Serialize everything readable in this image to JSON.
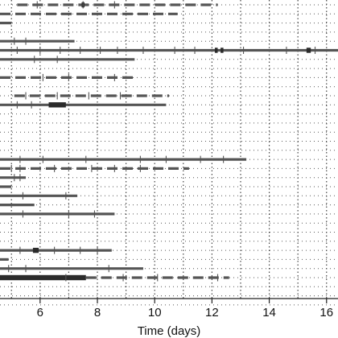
{
  "chart_data": {
    "type": "swimmer",
    "title": "",
    "xlabel": "Time (days)",
    "ylabel": "",
    "xlim": [
      4.6,
      16.4
    ],
    "x_ticks": [
      6,
      8,
      10,
      12,
      14,
      16
    ],
    "grid": {
      "vertical": "dotted",
      "horizontal": "dotted"
    },
    "colors": {
      "bar": "#555555",
      "dark": "#2b2b2b",
      "grid": "#444444",
      "axis": "#222222"
    },
    "row_count": 34,
    "rows": [
      {
        "index": 0,
        "start": 5.2,
        "end": 12.2,
        "style": "dashed",
        "ticks": [
          5.9,
          7.5,
          8.6
        ],
        "blocks": [
          [
            7.45,
            7.55
          ]
        ]
      },
      {
        "index": 1,
        "start": 4.6,
        "end": 10.8,
        "style": "dashed",
        "ticks": [],
        "blocks": []
      },
      {
        "index": 2,
        "start": 4.6,
        "end": 5.0,
        "style": "solid",
        "ticks": [],
        "blocks": []
      },
      {
        "index": 3,
        "start": 4.6,
        "end": 4.6,
        "style": "none",
        "ticks": [],
        "blocks": []
      },
      {
        "index": 4,
        "start": 4.6,
        "end": 7.2,
        "style": "solid",
        "ticks": [
          5.1,
          5.5
        ],
        "blocks": []
      },
      {
        "index": 5,
        "start": 4.6,
        "end": 16.4,
        "style": "solid",
        "ticks": [
          5.2,
          6.0,
          6.7,
          7.4,
          8.1,
          8.7,
          9.6,
          10.7,
          11.4,
          13.1,
          14.6,
          15.6
        ],
        "blocks": [
          [
            12.1,
            12.2
          ],
          [
            12.3,
            12.4
          ],
          [
            15.3,
            15.45
          ]
        ]
      },
      {
        "index": 6,
        "start": 4.6,
        "end": 9.3,
        "style": "solid",
        "ticks": [
          5.8,
          6.6
        ],
        "blocks": []
      },
      {
        "index": 7,
        "start": 4.6,
        "end": 4.6,
        "style": "none",
        "ticks": [],
        "blocks": []
      },
      {
        "index": 8,
        "start": 4.6,
        "end": 9.3,
        "style": "dashed",
        "ticks": [
          6.1,
          7.0,
          8.6
        ],
        "blocks": []
      },
      {
        "index": 9,
        "start": 4.6,
        "end": 4.6,
        "style": "none",
        "ticks": [],
        "blocks": []
      },
      {
        "index": 10,
        "start": 5.1,
        "end": 10.5,
        "style": "dashed",
        "ticks": [
          5.5,
          6.6,
          7.7,
          8.8
        ],
        "blocks": []
      },
      {
        "index": 11,
        "start": 4.6,
        "end": 10.4,
        "style": "solid",
        "ticks": [
          5.2,
          5.7
        ],
        "blocks": [
          [
            6.3,
            6.9
          ]
        ]
      },
      {
        "index": 12,
        "start": 4.6,
        "end": 4.6,
        "style": "none",
        "ticks": [],
        "blocks": []
      },
      {
        "index": 13,
        "start": 4.6,
        "end": 4.6,
        "style": "none",
        "ticks": [],
        "blocks": []
      },
      {
        "index": 14,
        "start": 4.6,
        "end": 4.6,
        "style": "none",
        "ticks": [],
        "blocks": []
      },
      {
        "index": 15,
        "start": 4.6,
        "end": 4.6,
        "style": "none",
        "ticks": [],
        "blocks": []
      },
      {
        "index": 16,
        "start": 4.6,
        "end": 4.6,
        "style": "none",
        "ticks": [],
        "blocks": []
      },
      {
        "index": 17,
        "start": 4.6,
        "end": 13.2,
        "style": "solid",
        "ticks": [
          5.3,
          6.1,
          7.6,
          9.5,
          10.4,
          11.6,
          12.4
        ],
        "blocks": []
      },
      {
        "index": 18,
        "start": 4.6,
        "end": 11.2,
        "style": "dashed",
        "ticks": [
          5.0,
          5.3,
          6.5,
          7.8,
          8.6,
          9.5
        ],
        "blocks": []
      },
      {
        "index": 19,
        "start": 4.6,
        "end": 5.5,
        "style": "solid",
        "ticks": [
          5.1,
          5.3
        ],
        "blocks": []
      },
      {
        "index": 20,
        "start": 4.6,
        "end": 5.0,
        "style": "solid",
        "ticks": [],
        "blocks": []
      },
      {
        "index": 21,
        "start": 4.6,
        "end": 7.3,
        "style": "solid",
        "ticks": [
          5.4,
          6.9
        ],
        "blocks": []
      },
      {
        "index": 22,
        "start": 4.6,
        "end": 5.8,
        "style": "solid",
        "ticks": [],
        "blocks": []
      },
      {
        "index": 23,
        "start": 4.6,
        "end": 8.6,
        "style": "solid",
        "ticks": [
          5.4,
          7.0,
          7.9
        ],
        "blocks": []
      },
      {
        "index": 24,
        "start": 4.6,
        "end": 4.6,
        "style": "none",
        "ticks": [],
        "blocks": []
      },
      {
        "index": 25,
        "start": 4.6,
        "end": 4.6,
        "style": "none",
        "ticks": [],
        "blocks": []
      },
      {
        "index": 26,
        "start": 4.6,
        "end": 4.6,
        "style": "none",
        "ticks": [],
        "blocks": []
      },
      {
        "index": 27,
        "start": 4.6,
        "end": 8.5,
        "style": "solid",
        "ticks": [
          5.3,
          6.5,
          7.4,
          8.0
        ],
        "blocks": [
          [
            5.75,
            5.95
          ]
        ]
      },
      {
        "index": 28,
        "start": 4.6,
        "end": 4.9,
        "style": "solid",
        "ticks": [],
        "blocks": []
      },
      {
        "index": 29,
        "start": 4.6,
        "end": 9.6,
        "style": "solid",
        "ticks": [
          4.9,
          5.5,
          8.4
        ],
        "blocks": []
      },
      {
        "index": 30,
        "start": 4.6,
        "end": 12.6,
        "style": "mixed",
        "solid_end": 7.6,
        "ticks": [
          6.9,
          8.9,
          10.1,
          12.2
        ],
        "blocks": [
          [
            4.6,
            7.6
          ]
        ]
      },
      {
        "index": 31,
        "start": 4.6,
        "end": 4.6,
        "style": "none",
        "ticks": [],
        "blocks": []
      },
      {
        "index": 32,
        "start": 4.6,
        "end": 4.6,
        "style": "none",
        "ticks": [],
        "blocks": []
      },
      {
        "index": 33,
        "start": 4.6,
        "end": 4.6,
        "style": "none",
        "ticks": [],
        "blocks": []
      }
    ]
  }
}
